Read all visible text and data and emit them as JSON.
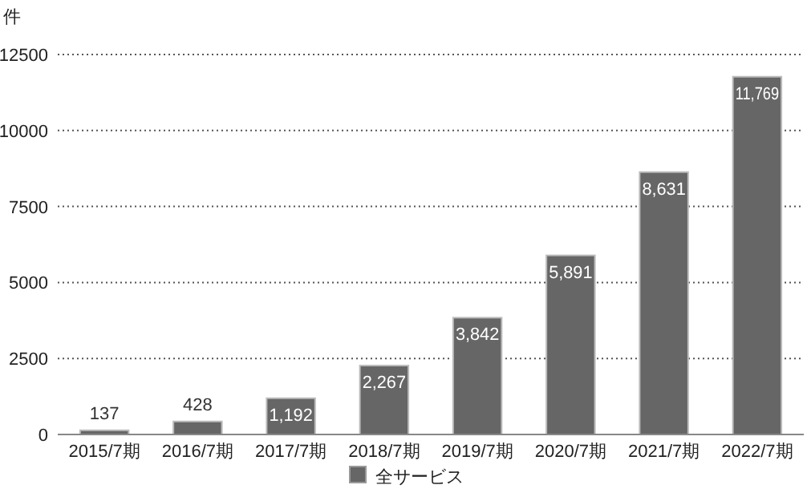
{
  "chart_data": {
    "type": "bar",
    "ylabel": "件",
    "categories": [
      "2015/7期",
      "2016/7期",
      "2017/7期",
      "2018/7期",
      "2019/7期",
      "2020/7期",
      "2021/7期",
      "2022/7期"
    ],
    "series": [
      {
        "name": "全サービス",
        "color": "#666666",
        "values": [
          137,
          428,
          1192,
          2267,
          3842,
          5891,
          8631,
          11769
        ],
        "value_labels": [
          "137",
          "428",
          "1,192",
          "2,267",
          "3,842",
          "5,891",
          "8,631",
          "11,769"
        ]
      }
    ],
    "ylim": [
      0,
      12500
    ],
    "yticks": [
      0,
      2500,
      5000,
      7500,
      10000,
      12500
    ],
    "grid": "y",
    "legend": "bottom"
  }
}
